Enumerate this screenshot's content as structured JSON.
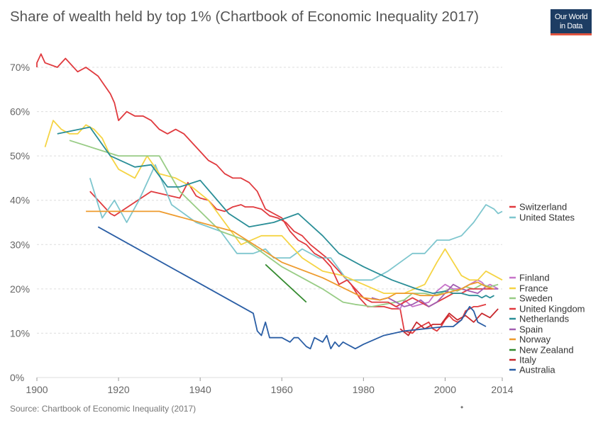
{
  "header": {
    "title": "Share of wealth held by top 1% (Chartbook of Economic Inequality 2017)",
    "logo_line1": "Our World",
    "logo_line2": "in Data",
    "logo_bg": "#1d3d63",
    "logo_stripe": "#e0543f"
  },
  "footer": {
    "source": "Source: Chartbook of Economic Inequality (2017)",
    "dot": "•"
  },
  "chart_data": {
    "type": "line",
    "title": "Share of wealth held by top 1% (Chartbook of Economic Inequality 2017)",
    "ylim": [
      0,
      72
    ],
    "xlim": [
      1900,
      2014
    ],
    "y_ticks": [
      "0%",
      "10%",
      "20%",
      "30%",
      "40%",
      "50%",
      "60%",
      "70%"
    ],
    "y_tick_values": [
      0,
      10,
      20,
      30,
      40,
      50,
      60,
      70
    ],
    "x_ticks": [
      "1900",
      "1920",
      "1940",
      "1960",
      "1980",
      "2000",
      "2014"
    ],
    "x_tick_values": [
      1900,
      1920,
      1940,
      1960,
      1980,
      2000,
      2014
    ],
    "grid": "horizontal dotted",
    "legend_placement": "right",
    "series": [
      {
        "name": "Switzerland",
        "color": "#e03a3e",
        "x": [
          1913,
          1918,
          1919,
          1928,
          1935,
          1937,
          1939,
          1940,
          1942,
          1944,
          1946,
          1948,
          1950,
          1951,
          1953,
          1955,
          1957,
          1959,
          1961,
          1963,
          1965,
          1967,
          1969,
          1971,
          1973,
          1975,
          1977,
          1979,
          1981,
          1985,
          1987,
          1989,
          1990,
          1992,
          1993,
          1994,
          1996,
          1997,
          1998,
          1999,
          2000,
          2001,
          2002,
          2003,
          2004,
          2005,
          2007,
          2008,
          2010
        ],
        "y": [
          42,
          37,
          36.5,
          42,
          40.5,
          44,
          41,
          40.5,
          40,
          38,
          37.5,
          38.5,
          39,
          38.5,
          38.5,
          38,
          36.5,
          36,
          35,
          33,
          32,
          30,
          28.5,
          27,
          25,
          23,
          21,
          18,
          16,
          16,
          15.5,
          15.5,
          10.5,
          10,
          11,
          11.5,
          12.5,
          11,
          10.5,
          11.5,
          13,
          14,
          13,
          12.5,
          13,
          15,
          16,
          16,
          16.5
        ],
        "label": "Switzerland"
      },
      {
        "name": "United States",
        "color": "#7ec6ce",
        "x": [
          1913,
          1916,
          1919,
          1922,
          1925,
          1929,
          1933,
          1939,
          1945,
          1949,
          1953,
          1956,
          1958,
          1962,
          1965,
          1969,
          1972,
          1976,
          1979,
          1982,
          1986,
          1989,
          1992,
          1995,
          1998,
          2001,
          2004,
          2007,
          2010,
          2012,
          2013,
          2014
        ],
        "y": [
          45,
          36,
          40,
          35,
          40,
          48,
          39,
          35,
          33,
          28,
          28,
          29,
          27,
          27,
          29,
          27,
          27,
          22,
          22,
          22,
          24,
          26,
          28,
          28,
          31,
          31,
          32,
          35,
          39,
          38,
          37,
          37.5
        ],
        "label": "United States"
      },
      {
        "name": "Finland",
        "color": "#c774c9",
        "x": [
          1987,
          1988,
          1989,
          1990,
          1992,
          1994,
          1996,
          1998,
          2000,
          2002,
          2004,
          2006,
          2008,
          2009,
          2010,
          2011,
          2012,
          2013
        ],
        "y": [
          16.5,
          16,
          15.5,
          17.5,
          16,
          16.5,
          17,
          19.5,
          21,
          20,
          20,
          21,
          22,
          21.5,
          20.5,
          21,
          20.5,
          20
        ],
        "label": "Finland"
      },
      {
        "name": "France",
        "color": "#f5d444",
        "x": [
          1902,
          1904,
          1906,
          1908,
          1910,
          1912,
          1914,
          1916,
          1918,
          1920,
          1924,
          1927,
          1930,
          1934,
          1938,
          1942,
          1946,
          1950,
          1955,
          1960,
          1965,
          1970,
          1975,
          1980,
          1985,
          1990,
          1995,
          1998,
          2000,
          2002,
          2004,
          2006,
          2008,
          2010,
          2012,
          2014
        ],
        "y": [
          52,
          58,
          56,
          55,
          55,
          57,
          56,
          54,
          50,
          47,
          45,
          50,
          46,
          45,
          43,
          40,
          35,
          30,
          32,
          32,
          27,
          24,
          23,
          21,
          19,
          19,
          21,
          26,
          29,
          26,
          23,
          22,
          22,
          24,
          23,
          22
        ],
        "label": "France"
      },
      {
        "name": "Sweden",
        "color": "#98cc85",
        "x": [
          1908,
          1920,
          1930,
          1935,
          1945,
          1951,
          1960,
          1965,
          1970,
          1975,
          1978,
          1982,
          1985,
          1988,
          1990,
          1992,
          1995,
          1997,
          1999,
          2001,
          2003,
          2005,
          2007,
          2009,
          2011,
          2013
        ],
        "y": [
          53.5,
          50,
          50,
          42,
          33,
          31,
          25,
          22.5,
          20,
          17,
          16.5,
          16,
          16.5,
          17,
          17.5,
          19,
          19,
          18.5,
          19,
          20,
          19.5,
          20.5,
          20,
          21,
          20.5,
          21
        ],
        "label": "Sweden"
      },
      {
        "name": "United Kingdom",
        "color": "#e03a3e",
        "x": [
          1895,
          1900,
          1901,
          1902,
          1905,
          1907,
          1910,
          1912,
          1915,
          1918,
          1919,
          1920,
          1922,
          1924,
          1926,
          1928,
          1930,
          1932,
          1934,
          1936,
          1938,
          1940,
          1942,
          1944,
          1946,
          1948,
          1950,
          1952,
          1954,
          1956,
          1958,
          1960,
          1962,
          1964,
          1966,
          1968,
          1970,
          1972,
          1974,
          1976,
          1978,
          1980,
          1982,
          1984,
          1986,
          1988,
          1990,
          1992,
          1994,
          1996,
          1998,
          2000,
          2002,
          2004,
          2006,
          2008,
          2010,
          2012
        ],
        "y": [
          70,
          71,
          73,
          71,
          70,
          72,
          69,
          70,
          68,
          64,
          62,
          58,
          60,
          59,
          59,
          58,
          56,
          55,
          56,
          55,
          53,
          51,
          49,
          48,
          46,
          45,
          45,
          44,
          42,
          38,
          37,
          36,
          33,
          31,
          30,
          28,
          27,
          25,
          21,
          22,
          20,
          18,
          17,
          17,
          17,
          16,
          17,
          18,
          17,
          16,
          17,
          18,
          19,
          19,
          20,
          20,
          20,
          20
        ],
        "label": "United Kingdom"
      },
      {
        "name": "Netherlands",
        "color": "#2a8e97",
        "x": [
          1905,
          1913,
          1918,
          1924,
          1928,
          1932,
          1935,
          1940,
          1947,
          1952,
          1958,
          1964,
          1970,
          1974,
          1980,
          1987,
          1993,
          1997,
          2000,
          2002,
          2004,
          2006,
          2008,
          2009,
          2010,
          2011,
          2012
        ],
        "y": [
          55,
          56.5,
          50,
          47.5,
          48,
          43,
          43,
          44.5,
          37,
          34,
          35,
          37,
          32,
          28,
          25,
          22,
          20,
          19,
          19.5,
          19,
          19,
          18.5,
          18.5,
          18,
          18.5,
          18,
          18.5
        ],
        "label": "Netherlands"
      },
      {
        "name": "Spain",
        "color": "#a25fb2",
        "x": [
          1982,
          1984,
          1986,
          1988,
          1990,
          1992,
          1994,
          1996,
          1998,
          2000,
          2002,
          2004,
          2006,
          2008,
          2010,
          2012,
          2013
        ],
        "y": [
          18,
          17.5,
          18,
          17,
          16,
          16.5,
          17.5,
          16,
          17,
          19,
          21,
          20,
          19.5,
          19,
          20.5,
          20,
          20
        ],
        "label": "Spain"
      },
      {
        "name": "Norway",
        "color": "#ee9b2d",
        "x": [
          1912,
          1930,
          1948,
          1960,
          1970,
          1980,
          1984,
          1986,
          1988,
          1990,
          1992,
          1994,
          1996,
          1998,
          2000,
          2002,
          2004,
          2006,
          2008,
          2010,
          2012
        ],
        "y": [
          37.5,
          37.5,
          33,
          26,
          22.5,
          18,
          17.5,
          18,
          19,
          19,
          19,
          18.5,
          18.5,
          18.5,
          19,
          19.5,
          20,
          21,
          21.5,
          20.5,
          20
        ],
        "label": "Norway"
      },
      {
        "name": "New Zealand",
        "color": "#338a2e",
        "x": [
          1956,
          1966
        ],
        "y": [
          25.5,
          17
        ],
        "label": "New Zealand"
      },
      {
        "name": "Italy",
        "color": "#c7282d",
        "x": [
          1989,
          1991,
          1993,
          1995,
          1997,
          1999,
          2001,
          2003,
          2005,
          2007,
          2009,
          2011,
          2013
        ],
        "y": [
          11,
          9.5,
          12.5,
          11,
          12,
          12,
          14.5,
          13,
          14,
          12.5,
          14.5,
          13.5,
          15.5
        ],
        "label": "Italy"
      },
      {
        "name": "Australia",
        "color": "#2a5ea5",
        "x": [
          1915,
          1953,
          1954,
          1955,
          1956,
          1957,
          1958,
          1960,
          1962,
          1963,
          1964,
          1966,
          1967,
          1968,
          1969,
          1970,
          1971,
          1972,
          1973,
          1974,
          1975,
          1976,
          1977,
          1978,
          1980,
          1985,
          1990,
          1995,
          2000,
          2002,
          2004,
          2006,
          2007,
          2008,
          2010
        ],
        "y": [
          34,
          14.5,
          10.5,
          9.5,
          12.5,
          9,
          9,
          9,
          8,
          9,
          9,
          7,
          6.5,
          9,
          8.5,
          8,
          9.5,
          6.5,
          8,
          7,
          8,
          7.5,
          7,
          6.5,
          7.5,
          9.5,
          10.5,
          11,
          11.5,
          11.5,
          13,
          16,
          15,
          12.5,
          11.5
        ],
        "label": "Australia"
      }
    ]
  }
}
